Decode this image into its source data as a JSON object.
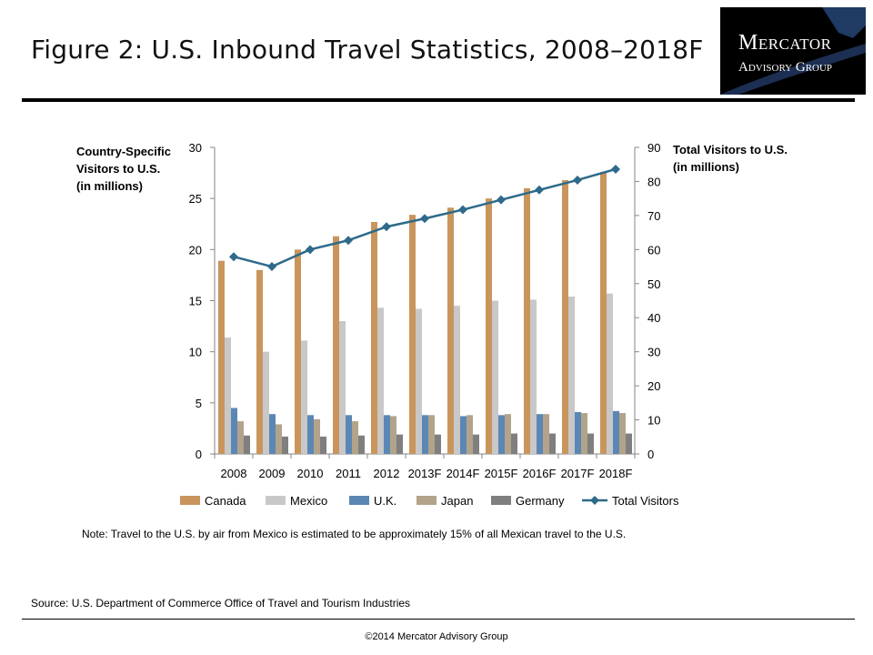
{
  "page": {
    "title": "Figure 2: U.S. Inbound Travel Statistics, 2008–2018F",
    "logo_line1": "Mercator",
    "logo_line2": "Advisory Group",
    "note": "Note: Travel to the U.S. by air from Mexico is estimated to be approximately 15% of all Mexican travel to the U.S.",
    "source": "Source: U.S. Department of Commerce Office of Travel and Tourism Industries",
    "copyright": "©2014 Mercator Advisory Group"
  },
  "chart_data": {
    "type": "bar",
    "title": "Figure 2: U.S. Inbound Travel Statistics, 2008–2018F",
    "ylabel": "Country-Specific\nVisitors to U.S.\n(in millions)",
    "y2label": "Total Visitors to U.S.\n(in millions)",
    "ylim": [
      0,
      30
    ],
    "y2lim": [
      0,
      90
    ],
    "yticks": [
      "0",
      "5",
      "10",
      "15",
      "20",
      "25",
      "30"
    ],
    "y2ticks": [
      "0",
      "10",
      "20",
      "30",
      "40",
      "50",
      "60",
      "70",
      "80",
      "90"
    ],
    "grid": false,
    "legend_position": "bottom",
    "categories": [
      "2008",
      "2009",
      "2010",
      "2011",
      "2012",
      "2013F",
      "2014F",
      "2015F",
      "2016F",
      "2017F",
      "2018F"
    ],
    "series": [
      {
        "name": "Canada",
        "type": "bar",
        "axis": "left",
        "color": "#C9955D",
        "values": [
          18.9,
          18.0,
          20.0,
          21.3,
          22.7,
          23.4,
          24.1,
          25.0,
          26.0,
          26.8,
          27.6
        ]
      },
      {
        "name": "Mexico",
        "type": "bar",
        "axis": "left",
        "color": "#C8C8C8",
        "values": [
          11.4,
          10.0,
          11.1,
          13.0,
          14.3,
          14.2,
          14.5,
          15.0,
          15.1,
          15.4,
          15.7
        ]
      },
      {
        "name": "U.K.",
        "type": "bar",
        "axis": "left",
        "color": "#5B87B5",
        "values": [
          4.5,
          3.9,
          3.8,
          3.8,
          3.8,
          3.8,
          3.7,
          3.8,
          3.9,
          4.1,
          4.2
        ]
      },
      {
        "name": "Japan",
        "type": "bar",
        "axis": "left",
        "color": "#B2A38A",
        "values": [
          3.2,
          2.9,
          3.4,
          3.2,
          3.7,
          3.8,
          3.8,
          3.9,
          3.9,
          4.0,
          4.0
        ]
      },
      {
        "name": "Germany",
        "type": "bar",
        "axis": "left",
        "color": "#7F7F7F",
        "values": [
          1.8,
          1.7,
          1.7,
          1.8,
          1.9,
          1.9,
          1.9,
          2.0,
          2.0,
          2.0,
          2.0
        ]
      },
      {
        "name": "Total Visitors",
        "type": "line",
        "axis": "right",
        "color": "#2E6A8A",
        "values": [
          57.9,
          55.0,
          60.0,
          62.7,
          66.7,
          69.1,
          71.7,
          74.6,
          77.5,
          80.4,
          83.6
        ]
      }
    ]
  }
}
